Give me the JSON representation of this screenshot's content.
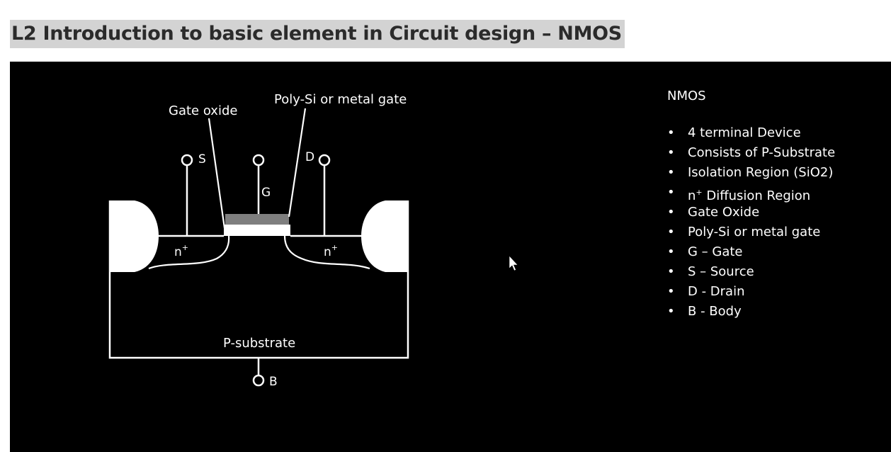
{
  "page": {
    "title": "L2 Introduction to basic element in Circuit design – NMOS"
  },
  "diagram": {
    "labels": {
      "gate_oxide": "Gate oxide",
      "poly_gate": "Poly-Si or metal gate",
      "source_terminal": "S",
      "gate_terminal": "G",
      "drain_terminal": "D",
      "body_terminal": "B",
      "n_plus_left": "n",
      "n_plus_right": "n",
      "plus_sign": "+",
      "substrate": "P-substrate"
    },
    "colors": {
      "background": "#000000",
      "lines": "#ffffff",
      "gate_metal": "#7f7f7f",
      "isolation": "#ffffff"
    }
  },
  "info": {
    "title": "NMOS",
    "items": [
      {
        "text": "4 terminal Device"
      },
      {
        "text": "Consists of P-Substrate"
      },
      {
        "text": "Isolation Region (SiO2)"
      },
      {
        "pre": "n",
        "sup": "+",
        "post": " Diffusion Region"
      },
      {
        "text": "Gate Oxide"
      },
      {
        "text": "Poly-Si or metal gate"
      },
      {
        "text": "G – Gate"
      },
      {
        "text": "S – Source"
      },
      {
        "text": "D - Drain"
      },
      {
        "text": "B - Body"
      }
    ]
  }
}
